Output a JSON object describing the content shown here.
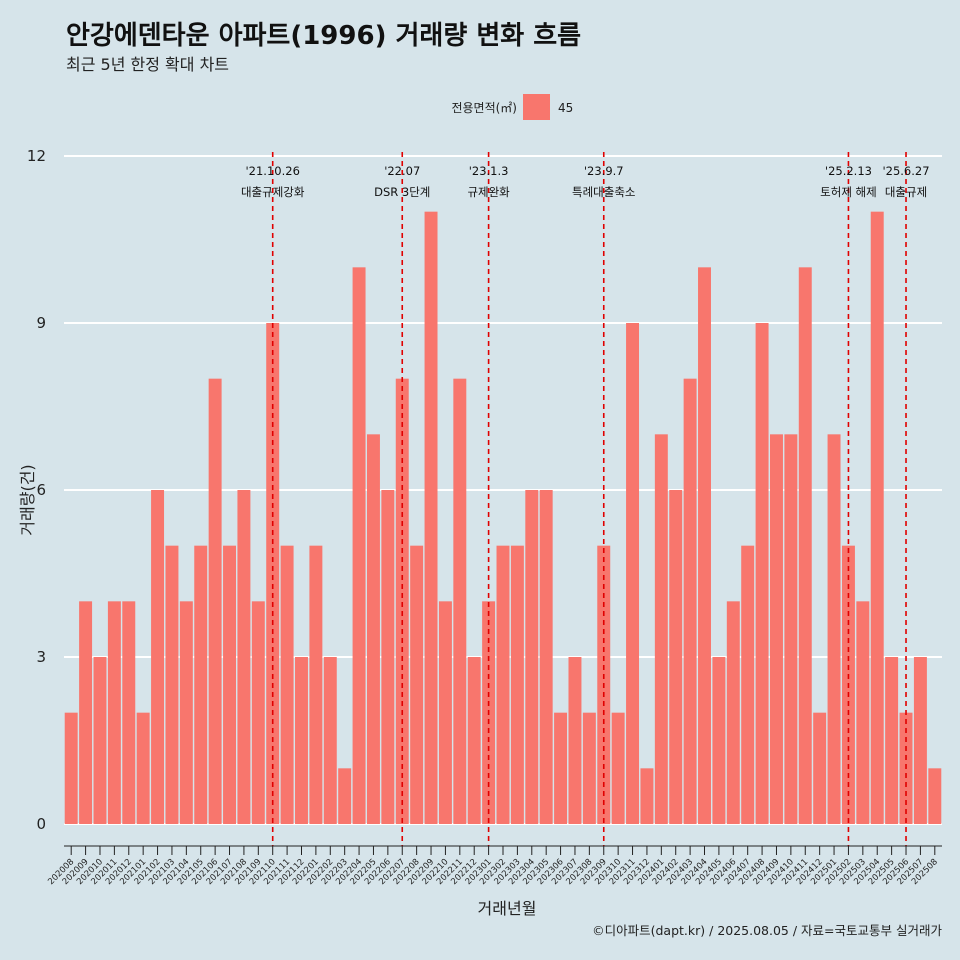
{
  "title": "안강에덴타운 아파트(1996) 거래량 변화 흐름",
  "subtitle": "최근 5년 한정 확대 차트",
  "caption": "©디아파트(dapt.kr) / 2025.08.05 / 자료=국토교통부 실거래가",
  "legend": {
    "title": "전용면적(㎡)",
    "items": [
      {
        "label": "45",
        "color": "#f8766d"
      }
    ]
  },
  "colors": {
    "background": "#d6e4ea",
    "bar": "#f8766d",
    "grid": "#ffffff",
    "annotation_line": "#e00000"
  },
  "chart_data": {
    "type": "bar",
    "title": "안강에덴타운 아파트(1996) 거래량 변화 흐름",
    "subtitle": "최근 5년 한정 확대 차트",
    "xlabel": "거래년월",
    "ylabel": "거래량(건)",
    "ylim": [
      0,
      12
    ],
    "yticks": [
      0,
      3,
      6,
      9,
      12
    ],
    "grid": "horizontal",
    "legend_position": "top",
    "categories": [
      "202008",
      "202009",
      "202010",
      "202011",
      "202012",
      "202101",
      "202102",
      "202103",
      "202104",
      "202105",
      "202106",
      "202107",
      "202108",
      "202109",
      "202110",
      "202111",
      "202112",
      "202201",
      "202202",
      "202203",
      "202204",
      "202205",
      "202206",
      "202207",
      "202208",
      "202209",
      "202210",
      "202211",
      "202212",
      "202301",
      "202302",
      "202303",
      "202304",
      "202305",
      "202306",
      "202307",
      "202308",
      "202309",
      "202310",
      "202311",
      "202312",
      "202401",
      "202402",
      "202403",
      "202404",
      "202405",
      "202406",
      "202407",
      "202408",
      "202409",
      "202410",
      "202411",
      "202412",
      "202501",
      "202502",
      "202503",
      "202504",
      "202505",
      "202506",
      "202507",
      "202508"
    ],
    "series": [
      {
        "name": "45",
        "values": [
          2,
          4,
          3,
          4,
          4,
          2,
          6,
          5,
          4,
          5,
          8,
          5,
          6,
          4,
          9,
          5,
          3,
          5,
          3,
          1,
          10,
          7,
          6,
          8,
          5,
          11,
          4,
          8,
          3,
          4,
          5,
          5,
          6,
          6,
          2,
          3,
          2,
          5,
          2,
          9,
          1,
          7,
          6,
          8,
          10,
          3,
          4,
          5,
          9,
          7,
          7,
          10,
          2,
          7,
          5,
          4,
          11,
          3,
          2,
          3,
          1
        ]
      }
    ],
    "annotations": [
      {
        "date_label": "'21.10.26",
        "text": "대출규제강화",
        "x_index": 14.0
      },
      {
        "date_label": "'22.07",
        "text": "DSR 3단계",
        "x_index": 23.0
      },
      {
        "date_label": "'23.1.3",
        "text": "규제완화",
        "x_index": 29.0
      },
      {
        "date_label": "'23.9.7",
        "text": "특례대출축소",
        "x_index": 37.0
      },
      {
        "date_label": "'25.2.13",
        "text": "토허제 해제",
        "x_index": 54.0
      },
      {
        "date_label": "'25.6.27",
        "text": "대출규제",
        "x_index": 58.0
      }
    ]
  }
}
